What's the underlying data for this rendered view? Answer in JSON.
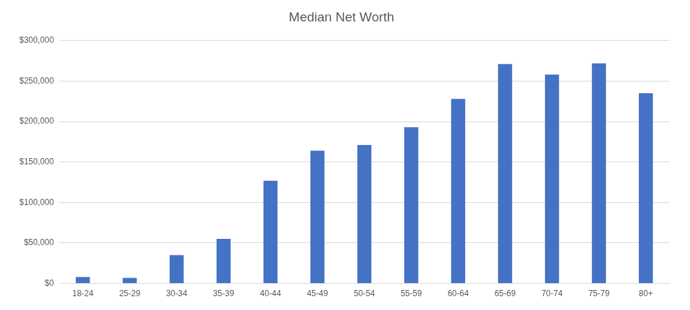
{
  "chart_data": {
    "type": "bar",
    "title": "Median Net Worth",
    "categories": [
      "18-24",
      "25-29",
      "30-34",
      "35-39",
      "40-44",
      "45-49",
      "50-54",
      "55-59",
      "60-64",
      "65-69",
      "70-74",
      "75-79",
      "80+"
    ],
    "values": [
      8000,
      7000,
      35000,
      55000,
      127000,
      164000,
      171000,
      193000,
      228000,
      271000,
      258000,
      272000,
      235000
    ],
    "color": "#4472c4",
    "ylim": [
      0,
      300000
    ],
    "yticks": [
      {
        "value": 0,
        "label": "$0"
      },
      {
        "value": 50000,
        "label": "$50,000"
      },
      {
        "value": 100000,
        "label": "$100,000"
      },
      {
        "value": 150000,
        "label": "$150,000"
      },
      {
        "value": 200000,
        "label": "$200,000"
      },
      {
        "value": 250000,
        "label": "$250,000"
      },
      {
        "value": 300000,
        "label": "$300,000"
      }
    ],
    "grid": true
  }
}
